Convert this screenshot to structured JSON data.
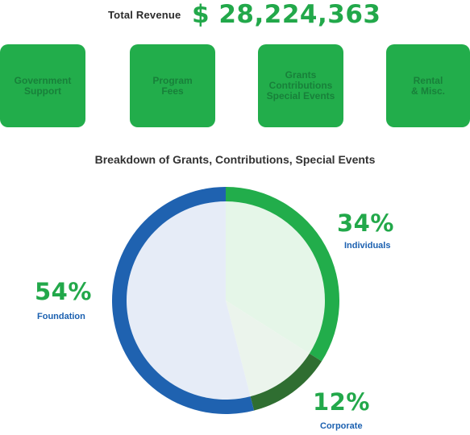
{
  "header": {
    "total_label": "Total Revenue",
    "total_amount": "$ 28,224,363"
  },
  "cards": [
    {
      "label": "Government\nSupport"
    },
    {
      "label": "Program\nFees"
    },
    {
      "label": "Grants\nContributions\nSpecial Events"
    },
    {
      "label": "Rental\n& Misc."
    }
  ],
  "colors": {
    "brand_green": "#22ad4b",
    "dark_green": "#2f6e31",
    "blue": "#1f62b0",
    "light_blue_fill": "#e6ecf7",
    "light_green_fill": "#e5f5e7"
  },
  "chart_data": {
    "type": "pie",
    "title": "Breakdown of Grants, Contributions, Special Events",
    "slices": [
      {
        "label": "Individuals",
        "value": 34,
        "value_label": "34%",
        "color": "#22ad4b",
        "fill": "#e5f6e8"
      },
      {
        "label": "Corporate",
        "value": 12,
        "value_label": "12%",
        "color": "#2f6e31",
        "fill": "#ebf4ec"
      },
      {
        "label": "Foundation",
        "value": 54,
        "value_label": "54%",
        "color": "#1f62b0",
        "fill": "#e6ecf7"
      }
    ]
  }
}
